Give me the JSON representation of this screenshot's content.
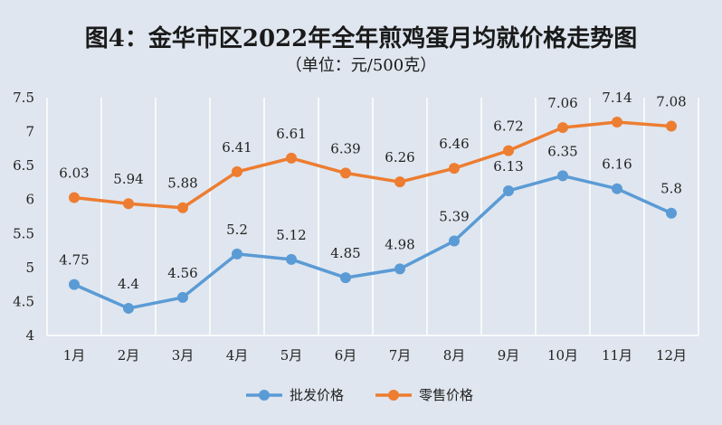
{
  "chart_data": {
    "type": "line",
    "title": "图4：金华市区2022年全年煎鸡蛋月均就价格走势图",
    "subtitle": "（单位：元/500克）",
    "categories": [
      "1月",
      "2月",
      "3月",
      "4月",
      "5月",
      "6月",
      "7月",
      "8月",
      "9月",
      "10月",
      "11月",
      "12月"
    ],
    "series": [
      {
        "name": "批发价格",
        "color": "#5b9bd5",
        "values": [
          4.75,
          4.4,
          4.56,
          5.2,
          5.12,
          4.85,
          4.98,
          5.39,
          6.13,
          6.35,
          6.16,
          5.8
        ]
      },
      {
        "name": "零售价格",
        "color": "#ed7d31",
        "values": [
          6.03,
          5.94,
          5.88,
          6.41,
          6.61,
          6.39,
          6.26,
          6.46,
          6.72,
          7.06,
          7.14,
          7.08
        ]
      }
    ],
    "ylim": [
      4,
      7.5
    ],
    "yticks": [
      4,
      4.5,
      5,
      5.5,
      6,
      6.5,
      7,
      7.5
    ],
    "ytick_labels": [
      "4",
      "4.5",
      "5",
      "5.5",
      "6",
      "6.5",
      "7",
      "7.5"
    ],
    "grid": "vertical",
    "legend": "bottom"
  }
}
